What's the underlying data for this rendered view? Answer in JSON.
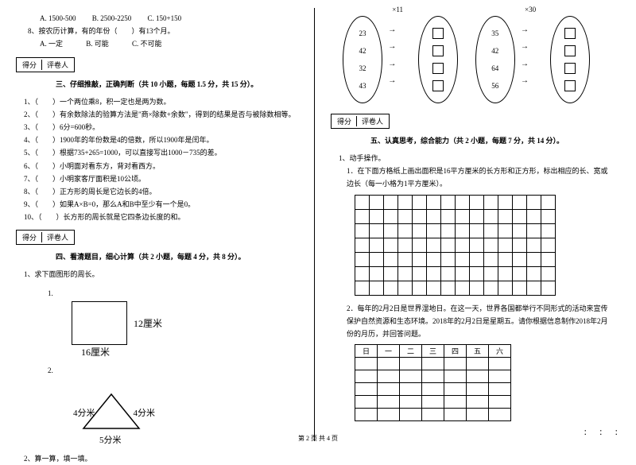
{
  "leftCol": {
    "q7opts": {
      "a": "A. 1500-500",
      "b": "B. 2500-2250",
      "c": "C. 150+150"
    },
    "q8": {
      "text": "8、按农历计算，有的年份（　　）有13个月。",
      "a": "A. 一定",
      "b": "B. 可能",
      "c": "C. 不可能"
    },
    "scoreLabel1": "得分",
    "scoreLabel2": "评卷人",
    "section3": "三、仔细推敲，正确判断（共 10 小题，每题 1.5 分，共 15 分）。",
    "judge": [
      "1、（　　）一个两位乘8，积一定也是两为数。",
      "2、（　　）有余数除法的验算方法是\"商×除数+余数\"，得到的结果是否与被除数相等。",
      "3、（　　）6分=600秒。",
      "4、（　　）1900年的年份数是4的倍数，所以1900年是闰年。",
      "5、（　　）根据735+265=1000，可以直接写出1000－735的差。",
      "6、（　　）小明面对看东方，背对看西方。",
      "7、（　　）小明家客厅面积是10公顷。",
      "8、（　　）正方形的周长是它边长的4倍。",
      "9、（　　）如果A×B=0，那么A和B中至少有一个是0。",
      "10、（　　）长方形的周长就是它四条边长度的和。"
    ],
    "section4": "四、看清题目，细心计算（共 2 小题，每题 4 分，共 8 分）。",
    "q4_1": "1、求下面图形的周长。",
    "sub1": "1.",
    "sub2": "2.",
    "rect_w": "16厘米",
    "rect_h": "12厘米",
    "tri_l": "4分米",
    "tri_r": "4分米",
    "tri_b": "5分米",
    "q4_2": "2、算一算，填一填。"
  },
  "rightCol": {
    "ellipse1": [
      "23",
      "42",
      "32",
      "43"
    ],
    "mul1": "×11",
    "ellipse2": [
      "35",
      "42",
      "64",
      "56"
    ],
    "mul2": "×30",
    "scoreLabel1": "得分",
    "scoreLabel2": "评卷人",
    "section5": "五、认真思考，综合能力（共 2 小题，每题 7 分，共 14 分）。",
    "q5_1": "1、动手操作。",
    "q5_1_1": "1．在下面方格纸上画出面积是16平方厘米的长方形和正方形，标出相应的长、宽或边长（每一小格为1平方厘米）。",
    "gridRows": 7,
    "gridCols": 14,
    "q5_2": "2．每年的2月2日是世界湿地日。在这一天，世界各国都举行不同形式的活动来宣传保护自然资源和生态环境。2018年的2月2日是星期五。请你根据信息制作2018年2月份的月历，并回答问题。",
    "calHead": [
      "日",
      "一",
      "二",
      "三",
      "四",
      "五",
      "六"
    ],
    "calRows": 5
  },
  "footer": "第 2 页 共 4 页",
  "dots": "：　：　："
}
